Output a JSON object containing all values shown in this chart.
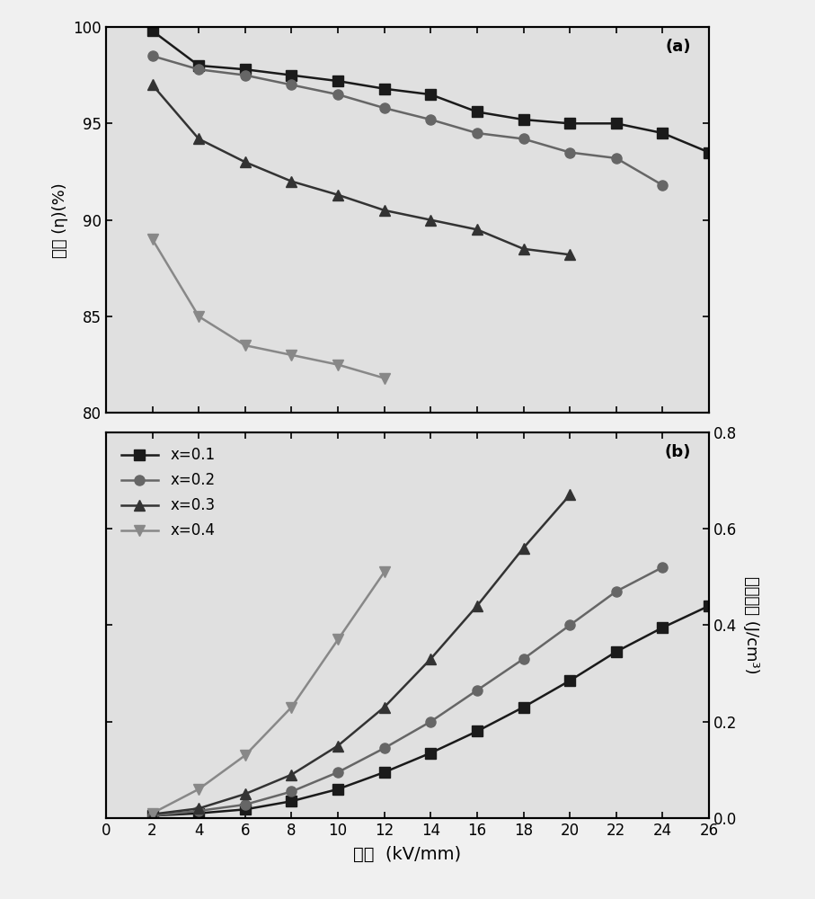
{
  "panel_a": {
    "label": "(a)",
    "ylabel_cn": "效率",
    "ylabel_en": " (η)(%)",
    "ylim": [
      80,
      100
    ],
    "yticks": [
      80,
      85,
      90,
      95,
      100
    ],
    "series": [
      {
        "label": "x=0.1",
        "x": [
          2,
          4,
          6,
          8,
          10,
          12,
          14,
          16,
          18,
          20,
          22,
          24,
          26
        ],
        "y": [
          99.8,
          98.0,
          97.8,
          97.5,
          97.2,
          96.8,
          96.5,
          95.6,
          95.2,
          95.0,
          95.0,
          94.5,
          93.5
        ],
        "color": "#1a1a1a",
        "marker": "s",
        "linestyle": "-"
      },
      {
        "label": "x=0.2",
        "x": [
          2,
          4,
          6,
          8,
          10,
          12,
          14,
          16,
          18,
          20,
          22,
          24
        ],
        "y": [
          98.5,
          97.8,
          97.5,
          97.0,
          96.5,
          95.8,
          95.2,
          94.5,
          94.2,
          93.5,
          93.2,
          91.8
        ],
        "color": "#666666",
        "marker": "o",
        "linestyle": "-"
      },
      {
        "label": "x=0.3",
        "x": [
          2,
          4,
          6,
          8,
          10,
          12,
          14,
          16,
          18,
          20
        ],
        "y": [
          97.0,
          94.2,
          93.0,
          92.0,
          91.3,
          90.5,
          90.0,
          89.5,
          88.5,
          88.2
        ],
        "color": "#333333",
        "marker": "^",
        "linestyle": "-"
      },
      {
        "label": "x=0.4",
        "x": [
          2,
          4,
          6,
          8,
          10,
          12
        ],
        "y": [
          89.0,
          85.0,
          83.5,
          83.0,
          82.5,
          81.8
        ],
        "color": "#888888",
        "marker": "v",
        "linestyle": "-"
      }
    ]
  },
  "panel_b": {
    "label": "(b)",
    "ylabel_cn": "储能密度",
    "ylabel_en": " (J/cm³)",
    "ylim": [
      0.0,
      0.8
    ],
    "yticks": [
      0.0,
      0.2,
      0.4,
      0.6,
      0.8
    ],
    "series": [
      {
        "label": "x=0.1",
        "x": [
          2,
          4,
          6,
          8,
          10,
          12,
          14,
          16,
          18,
          20,
          22,
          24,
          26
        ],
        "y": [
          0.005,
          0.01,
          0.018,
          0.035,
          0.06,
          0.095,
          0.135,
          0.18,
          0.23,
          0.285,
          0.345,
          0.395,
          0.44
        ],
        "color": "#1a1a1a",
        "marker": "s",
        "linestyle": "-"
      },
      {
        "label": "x=0.2",
        "x": [
          2,
          4,
          6,
          8,
          10,
          12,
          14,
          16,
          18,
          20,
          22,
          24
        ],
        "y": [
          0.005,
          0.015,
          0.028,
          0.055,
          0.095,
          0.145,
          0.2,
          0.265,
          0.33,
          0.4,
          0.47,
          0.52
        ],
        "color": "#666666",
        "marker": "o",
        "linestyle": "-"
      },
      {
        "label": "x=0.3",
        "x": [
          2,
          4,
          6,
          8,
          10,
          12,
          14,
          16,
          18,
          20
        ],
        "y": [
          0.008,
          0.02,
          0.05,
          0.09,
          0.15,
          0.23,
          0.33,
          0.44,
          0.56,
          0.67
        ],
        "color": "#333333",
        "marker": "^",
        "linestyle": "-"
      },
      {
        "label": "x=0.4",
        "x": [
          2,
          4,
          6,
          8,
          10,
          12
        ],
        "y": [
          0.01,
          0.06,
          0.13,
          0.23,
          0.37,
          0.51
        ],
        "color": "#888888",
        "marker": "v",
        "linestyle": "-"
      }
    ]
  },
  "xlabel_cn": "电场",
  "xlabel_en": "  (kV/mm)",
  "xlim": [
    0,
    26
  ],
  "xticks": [
    0,
    2,
    4,
    6,
    8,
    10,
    12,
    14,
    16,
    18,
    20,
    22,
    24,
    26
  ],
  "bg_color": "#f0f0f0",
  "plot_bg_color": "#e0e0e0"
}
